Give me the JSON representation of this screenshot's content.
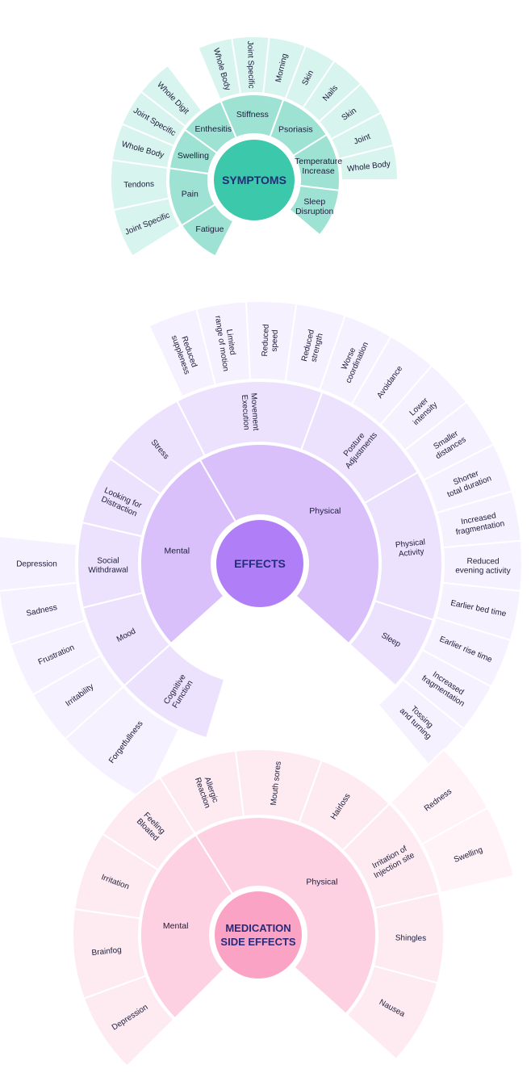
{
  "diagrams": [
    {
      "id": "symptoms",
      "title_lines": [
        "SYMPTOMS"
      ],
      "colors": {
        "center": "#3cc8aa",
        "ring1": "#9ee2d3",
        "ring2": "#d8f4ee",
        "ring3": "#d8f4ee",
        "title": "#262a7a",
        "text": "#1c1c3a",
        "stroke": "#ffffff"
      },
      "ring1": [
        {
          "label": "Fatigue"
        },
        {
          "label": "Pain"
        },
        {
          "label": "Swelling"
        },
        {
          "label": "Enthesitis"
        },
        {
          "label": "Stiffness"
        },
        {
          "label": "Psoriasis"
        },
        {
          "label": "Temperature Increase"
        },
        {
          "label": "Sleep Disruption"
        }
      ],
      "ring2": [
        {
          "label": "Joint Specific"
        },
        {
          "label": "Tendons"
        },
        {
          "label": "Whole Body"
        },
        {
          "label": "Joint Specific"
        },
        {
          "label": "Whole Digit"
        },
        {
          "label": "Whole Body"
        },
        {
          "label": "Joint Specific"
        },
        {
          "label": "Morning"
        },
        {
          "label": "Skin"
        },
        {
          "label": "Nails"
        },
        {
          "label": "Skin"
        },
        {
          "label": "Joint"
        },
        {
          "label": "Whole Body"
        }
      ],
      "ring3": []
    },
    {
      "id": "effects",
      "title_lines": [
        "EFFECTS"
      ],
      "colors": {
        "center": "#b07ff8",
        "ring1": "#d9c0fb",
        "ring2": "#ede2fd",
        "ring3": "#f6f1fe",
        "title": "#262a7a",
        "text": "#1c1c3a",
        "stroke": "#ffffff"
      },
      "ring1": [
        {
          "label": "Mental"
        },
        {
          "label": "Physical"
        }
      ],
      "ring2": [
        {
          "label": "Cognitive Function"
        },
        {
          "label": "Mood"
        },
        {
          "label": "Social Withdrawal"
        },
        {
          "label": "Looking for Distraction"
        },
        {
          "label": "Stress"
        },
        {
          "label": "Movement Execution"
        },
        {
          "label": "Posture Adjustments"
        },
        {
          "label": "Physical Activity"
        },
        {
          "label": "Sleep"
        }
      ],
      "ring3": [
        {
          "label": "Forgetfullness"
        },
        {
          "label": "Irritability"
        },
        {
          "label": "Frustration"
        },
        {
          "label": "Sadness"
        },
        {
          "label": "Depression"
        },
        {
          "label": "Reduced suppleness"
        },
        {
          "label": "Limited range of motion"
        },
        {
          "label": "Reduced speed"
        },
        {
          "label": "Reduced strength"
        },
        {
          "label": "Worse coordination"
        },
        {
          "label": "Avoidance"
        },
        {
          "label": "Lower intensity"
        },
        {
          "label": "Smaller distances"
        },
        {
          "label": "Shorter total duration"
        },
        {
          "label": "Increased fragmentation"
        },
        {
          "label": "Reduced evening activity"
        },
        {
          "label": "Earlier bed time"
        },
        {
          "label": "Earlier rise time"
        },
        {
          "label": "Increased fragmentation"
        },
        {
          "label": "Tossing and turning"
        }
      ]
    },
    {
      "id": "medication",
      "title_lines": [
        "MEDICATION",
        "SIDE EFFECTS"
      ],
      "colors": {
        "center": "#fba3c5",
        "ring1": "#fdd1e1",
        "ring2": "#feebf2",
        "ring3": "#fff3f7",
        "title": "#262a7a",
        "text": "#1c1c3a",
        "stroke": "#ffffff"
      },
      "ring1": [
        {
          "label": "Mental"
        },
        {
          "label": "Physical"
        }
      ],
      "ring2": [
        {
          "label": "Depression"
        },
        {
          "label": "Brainfog"
        },
        {
          "label": "Irritation"
        },
        {
          "label": "Feeling Bloated"
        },
        {
          "label": "Allergic Reaction"
        },
        {
          "label": "Mouth sores"
        },
        {
          "label": "Hairloss"
        },
        {
          "label": "Irritation of Injection site"
        },
        {
          "label": "Shingles"
        },
        {
          "label": "Nausea"
        }
      ],
      "ring3": [
        {
          "label": "Redness"
        },
        {
          "label": "Swelling"
        }
      ]
    }
  ]
}
